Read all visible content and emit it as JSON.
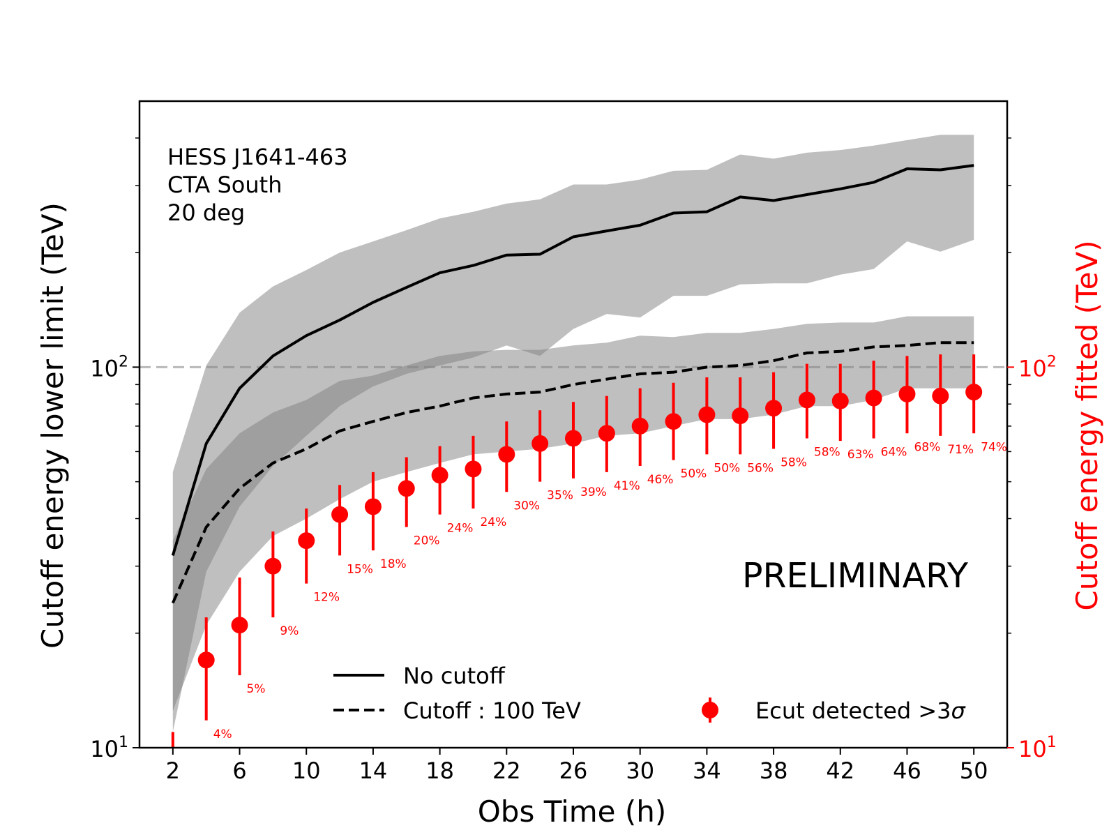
{
  "chart_data": {
    "type": "line",
    "title": "",
    "xlabel": "Obs Time (h)",
    "ylabel": "Cutoff energy lower limit (TeV)",
    "ylabel_right": "Cutoff energy fitted (TeV)",
    "xlim": [
      0,
      52
    ],
    "ylim": [
      10,
      500
    ],
    "yscale": "log",
    "xticks": [
      2,
      6,
      10,
      14,
      18,
      22,
      26,
      30,
      34,
      38,
      42,
      46,
      50
    ],
    "yticks": [
      {
        "value": 10,
        "base": "10",
        "exp": "1"
      },
      {
        "value": 100,
        "base": "10",
        "exp": "2"
      }
    ],
    "reference_line": 100,
    "annotation_lines": [
      "HESS J1641-463",
      "CTA South",
      "20 deg"
    ],
    "watermark": "PRELIMINARY",
    "x": [
      2,
      4,
      6,
      8,
      10,
      12,
      14,
      16,
      18,
      20,
      22,
      24,
      26,
      28,
      30,
      32,
      34,
      36,
      38,
      40,
      42,
      44,
      46,
      48,
      50
    ],
    "series": [
      {
        "name": "No cutoff",
        "style": "solid",
        "values": [
          32,
          63,
          88,
          107,
          121,
          133,
          148,
          162,
          177,
          185,
          197,
          198,
          220,
          228,
          236,
          254,
          256,
          280,
          274,
          284,
          294,
          306,
          332,
          330,
          339
        ],
        "band_low": [
          11,
          29,
          43,
          55,
          66,
          79,
          89,
          96,
          101,
          106,
          114,
          107,
          126,
          138,
          135,
          154,
          154,
          165,
          166,
          166,
          175,
          181,
          214,
          201,
          216
        ],
        "band_high": [
          53,
          101,
          139,
          163,
          180,
          200,
          214,
          229,
          246,
          256,
          269,
          276,
          302,
          302,
          311,
          328,
          330,
          362,
          353,
          366,
          372,
          382,
          395,
          408,
          408
        ]
      },
      {
        "name": "Cutoff : 100 TeV",
        "style": "dashed",
        "values": [
          24,
          38,
          48,
          56,
          61,
          68,
          72,
          76,
          79,
          83,
          85,
          86,
          90,
          93,
          96,
          97,
          100,
          101,
          104,
          109,
          110,
          113,
          114,
          116,
          116
        ],
        "band_low": [
          12.5,
          21,
          29,
          36,
          40,
          45,
          50,
          53,
          56,
          59,
          60,
          61,
          63,
          66,
          67,
          70,
          73,
          73,
          75,
          79,
          79,
          82,
          88,
          88,
          88
        ],
        "band_high": [
          35,
          54,
          67,
          76,
          82,
          92,
          95,
          101,
          107,
          110,
          111,
          111,
          114,
          116,
          121,
          120,
          123,
          123,
          126,
          130,
          131,
          131,
          136,
          136,
          136
        ]
      }
    ],
    "detections": {
      "name": "Ecut detected >3σ",
      "label_text": "Ecut detected >3",
      "label_symbol": "σ",
      "color": "#ff0000",
      "points": [
        {
          "x": 2,
          "y": 10,
          "yerr_low": 10,
          "yerr_high": 11,
          "label": ""
        },
        {
          "x": 4,
          "y": 17,
          "yerr_low": 11.8,
          "yerr_high": 22,
          "label": "4%"
        },
        {
          "x": 6,
          "y": 21,
          "yerr_low": 15.5,
          "yerr_high": 28,
          "label": "5%"
        },
        {
          "x": 8,
          "y": 30,
          "yerr_low": 22,
          "yerr_high": 37,
          "label": "9%"
        },
        {
          "x": 10,
          "y": 35,
          "yerr_low": 27,
          "yerr_high": 42.5,
          "label": "12%"
        },
        {
          "x": 12,
          "y": 41,
          "yerr_low": 32,
          "yerr_high": 49,
          "label": "15%"
        },
        {
          "x": 14,
          "y": 43,
          "yerr_low": 33,
          "yerr_high": 53,
          "label": "18%"
        },
        {
          "x": 16,
          "y": 48,
          "yerr_low": 38,
          "yerr_high": 58,
          "label": "20%"
        },
        {
          "x": 18,
          "y": 52,
          "yerr_low": 41,
          "yerr_high": 62,
          "label": "24%"
        },
        {
          "x": 20,
          "y": 54,
          "yerr_low": 42.5,
          "yerr_high": 66,
          "label": "24%"
        },
        {
          "x": 22,
          "y": 59,
          "yerr_low": 47,
          "yerr_high": 72,
          "label": "30%"
        },
        {
          "x": 24,
          "y": 63,
          "yerr_low": 50,
          "yerr_high": 77,
          "label": "35%"
        },
        {
          "x": 26,
          "y": 65,
          "yerr_low": 51,
          "yerr_high": 81,
          "label": "39%"
        },
        {
          "x": 28,
          "y": 67,
          "yerr_low": 53,
          "yerr_high": 84,
          "label": "41%"
        },
        {
          "x": 30,
          "y": 70,
          "yerr_low": 55,
          "yerr_high": 88,
          "label": "46%"
        },
        {
          "x": 32,
          "y": 72,
          "yerr_low": 57,
          "yerr_high": 91,
          "label": "50%"
        },
        {
          "x": 34,
          "y": 75,
          "yerr_low": 59,
          "yerr_high": 94,
          "label": "50%"
        },
        {
          "x": 36,
          "y": 74.5,
          "yerr_low": 59,
          "yerr_high": 94,
          "label": "56%"
        },
        {
          "x": 38,
          "y": 78,
          "yerr_low": 61,
          "yerr_high": 97,
          "label": "58%"
        },
        {
          "x": 40,
          "y": 82,
          "yerr_low": 65,
          "yerr_high": 102,
          "label": "58%"
        },
        {
          "x": 42,
          "y": 81.5,
          "yerr_low": 64,
          "yerr_high": 102,
          "label": "63%"
        },
        {
          "x": 44,
          "y": 83,
          "yerr_low": 65,
          "yerr_high": 104,
          "label": "64%"
        },
        {
          "x": 46,
          "y": 85,
          "yerr_low": 67,
          "yerr_high": 107,
          "label": "68%"
        },
        {
          "x": 48,
          "y": 84,
          "yerr_low": 66,
          "yerr_high": 108,
          "label": "71%"
        },
        {
          "x": 50,
          "y": 86,
          "yerr_low": 67,
          "yerr_high": 108,
          "label": "74%"
        }
      ]
    },
    "legend": {
      "placement": "bottom",
      "entries": [
        "No cutoff",
        "Cutoff : 100 TeV",
        "Ecut detected >3σ"
      ]
    }
  }
}
